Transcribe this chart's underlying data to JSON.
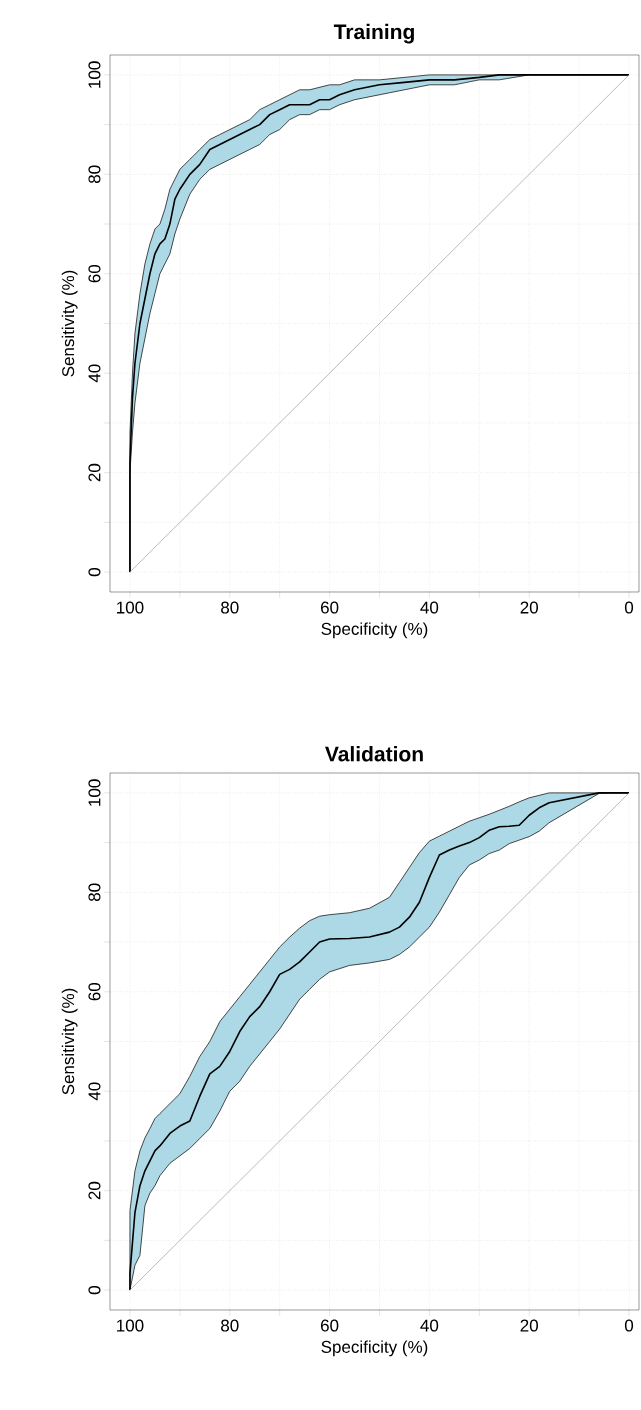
{
  "chart_data": [
    {
      "type": "line",
      "title": "Training",
      "xlabel": "Specificity (%)",
      "ylabel": "Sensitivity (%)",
      "xlim": [
        104,
        -2
      ],
      "ylim": [
        -4,
        104
      ],
      "grid": true,
      "xticks": [
        100,
        {
          "value": 90,
          "label": null
        },
        80,
        {
          "value": 70,
          "label": null
        },
        60,
        {
          "value": 50,
          "label": null
        },
        40,
        {
          "value": 30,
          "label": null
        },
        20,
        {
          "value": 10,
          "label": null
        },
        0
      ],
      "yticks": [
        0,
        {
          "value": 10,
          "label": null
        },
        20,
        {
          "value": 30,
          "label": null
        },
        40,
        {
          "value": 50,
          "label": null
        },
        60,
        {
          "value": 70,
          "label": null
        },
        80,
        {
          "value": 90,
          "label": null
        },
        100
      ],
      "series": [
        {
          "color": "#000000",
          "x": [
            100,
            100,
            99.5,
            99,
            98,
            97,
            96,
            95,
            94,
            93,
            92,
            91,
            90,
            88,
            86,
            84,
            82,
            80,
            78,
            76,
            74,
            72,
            70,
            68,
            66,
            64,
            62,
            60,
            58,
            55,
            50,
            45,
            40,
            35,
            30,
            26,
            20,
            10,
            0
          ],
          "values": [
            0,
            22,
            35,
            42,
            50,
            55,
            60,
            64,
            66,
            67,
            70,
            75,
            77,
            80,
            82,
            85,
            86,
            87,
            88,
            89,
            90,
            92,
            93,
            94,
            94,
            94,
            95,
            95,
            96,
            97,
            98,
            98.5,
            99,
            99,
            99.5,
            100,
            100,
            100,
            100
          ],
          "lower": [
            0,
            20,
            28,
            34,
            42,
            47,
            52,
            56,
            60,
            62,
            64,
            68,
            71,
            76,
            79,
            81,
            82,
            83,
            84,
            85,
            86,
            88,
            89,
            91,
            92,
            92,
            93,
            93,
            94,
            95,
            96,
            97,
            98,
            98,
            99,
            99,
            100,
            100,
            100
          ],
          "upper": [
            0,
            28,
            40,
            48,
            56,
            62,
            66,
            69,
            70,
            73,
            77,
            79,
            81,
            83,
            85,
            87,
            88,
            89,
            90,
            91,
            93,
            94,
            95,
            96,
            97,
            97,
            97.5,
            98,
            98,
            99,
            99,
            99.5,
            100,
            100,
            100,
            100,
            100,
            100,
            100
          ]
        },
        {
          "color": "#aaaaaa",
          "x": [
            100,
            0
          ],
          "values": [
            0,
            100
          ]
        }
      ]
    },
    {
      "type": "line",
      "title": "Validation",
      "xlabel": "Specificity (%)",
      "ylabel": "Sensitivity (%)",
      "xlim": [
        104,
        -2
      ],
      "ylim": [
        -4,
        104
      ],
      "grid": true,
      "xticks": [
        100,
        {
          "value": 90,
          "label": null
        },
        80,
        {
          "value": 70,
          "label": null
        },
        60,
        {
          "value": 50,
          "label": null
        },
        40,
        {
          "value": 30,
          "label": null
        },
        20,
        {
          "value": 10,
          "label": null
        },
        0
      ],
      "yticks": [
        0,
        {
          "value": 10,
          "label": null
        },
        20,
        {
          "value": 30,
          "label": null
        },
        40,
        {
          "value": 50,
          "label": null
        },
        60,
        {
          "value": 70,
          "label": null
        },
        80,
        {
          "value": 90,
          "label": null
        },
        100
      ],
      "series": [
        {
          "color": "#000000",
          "x": [
            100,
            100,
            99,
            98,
            97,
            96,
            95,
            94,
            92,
            90,
            88,
            86,
            84,
            82,
            80,
            78,
            76,
            74,
            72,
            70,
            68,
            66,
            64,
            62,
            60,
            56,
            52,
            48,
            46,
            44,
            42,
            40,
            38,
            36,
            34,
            32,
            30,
            28,
            26,
            24,
            22,
            20,
            18,
            16,
            6,
            4,
            0
          ],
          "values": [
            0,
            3.4,
            15.6,
            21,
            24,
            26,
            28,
            29,
            31.5,
            33,
            34,
            39,
            43.5,
            45,
            48,
            52,
            55,
            57,
            60,
            63.5,
            64.5,
            66,
            68,
            70,
            70.6,
            70.7,
            71,
            72,
            73,
            75,
            78,
            83,
            87.5,
            88.5,
            89.3,
            90,
            91,
            92.5,
            93.2,
            93.3,
            93.5,
            95.5,
            97,
            98,
            100,
            100,
            100
          ],
          "lower": [
            0,
            0,
            5,
            7,
            17,
            19.5,
            21,
            23,
            25.5,
            27,
            28.5,
            30.5,
            32.5,
            36,
            40,
            42,
            45,
            47.5,
            50,
            52.5,
            55.5,
            58.5,
            60.5,
            62.5,
            64,
            65.3,
            65.8,
            66.5,
            67.5,
            69,
            71,
            73,
            76,
            79.5,
            83,
            85.5,
            86.5,
            87.8,
            88.5,
            89.8,
            90.5,
            91.2,
            92.3,
            94,
            99.9,
            100,
            100
          ],
          "upper": [
            2,
            16,
            24,
            28,
            30.6,
            32.5,
            34.5,
            35.5,
            37.5,
            39.5,
            43,
            47,
            50,
            54,
            56.5,
            59,
            61.5,
            64,
            66.5,
            69,
            71,
            72.8,
            74.3,
            75.2,
            75.5,
            75.9,
            76.8,
            79,
            82,
            85,
            88,
            90.3,
            91.3,
            92.3,
            93.3,
            94.3,
            95,
            95.7,
            96.5,
            97.3,
            98.2,
            99,
            99.5,
            100,
            100,
            100,
            100
          ]
        },
        {
          "color": "#aaaaaa",
          "x": [
            100,
            0
          ],
          "values": [
            0,
            100
          ]
        }
      ]
    }
  ]
}
